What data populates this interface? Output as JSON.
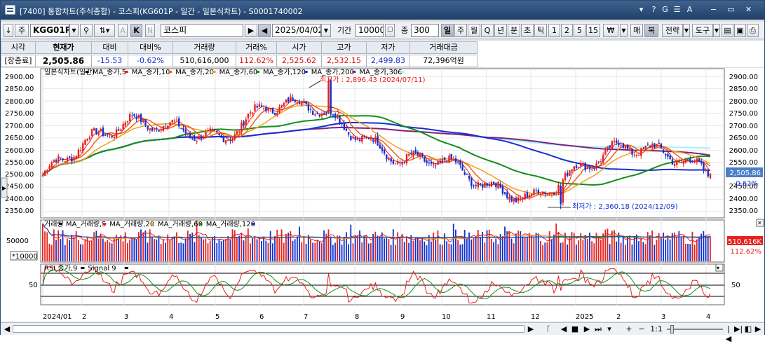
{
  "window": {
    "title": "[7400]   통합차트(주식종합) - 코스피(KG601P - 일간 - 일본식차트) - S0001740002",
    "title_buttons": [
      "▾",
      "?",
      "G",
      "☰",
      "A",
      "−",
      "▭",
      "✕"
    ]
  },
  "toolbar": {
    "down_arrow": "↓",
    "type_select": "주",
    "code": "KGG01P",
    "time_buttons": [
      "A",
      "K",
      "N"
    ],
    "name": "코스피",
    "date": "2025/04/02",
    "period_label": "기간",
    "period_value": "10000",
    "count_label": "종",
    "count_value": "300",
    "interval_buttons": [
      "일",
      "주",
      "월",
      "Q",
      "년",
      "분",
      "초",
      "틱",
      "1",
      "2",
      "5",
      "15"
    ],
    "currency_btn": "₩",
    "right_buttons": [
      "매",
      "복",
      "전략",
      "도구"
    ]
  },
  "quote": {
    "headers": [
      "시각",
      "현재가",
      "대비",
      "대비%",
      "거래량",
      "거래%",
      "시가",
      "고가",
      "저가",
      "거래대금"
    ],
    "values": [
      "[장종료]",
      "2,505.86",
      "-15.53",
      "-0.62%",
      "510,616,000",
      "112.62%",
      "2,525.62",
      "2,532.15",
      "2,499.83",
      "72,396억원"
    ]
  },
  "legends": {
    "price": [
      {
        "text": "일본식차트(일간)",
        "color": "#000000"
      },
      {
        "text": "MA_종가,5",
        "color": "#e8201c"
      },
      {
        "text": "MA_종가,10",
        "color": "#f06018"
      },
      {
        "text": "MA_종가,20",
        "color": "#f0a020"
      },
      {
        "text": "MA_종가,60",
        "color": "#109018"
      },
      {
        "text": "MA_종가,120",
        "color": "#1830d0"
      },
      {
        "text": "MA_종가,200",
        "color": "#802080"
      },
      {
        "text": "MA_종가,306",
        "color": "#a8f0f8"
      }
    ],
    "volume": [
      {
        "text": "거래량",
        "color": "#000000"
      },
      {
        "text": "MA_거래량,5",
        "color": "#e8201c"
      },
      {
        "text": "MA_거래량,20",
        "color": "#f0a020"
      },
      {
        "text": "MA_거래량,60",
        "color": "#109018"
      },
      {
        "text": "MA_거래량,120",
        "color": "#1830d0"
      }
    ],
    "rsi": [
      {
        "text": "RSI 종가,9",
        "color": "#000000"
      },
      {
        "text": "Signal 9",
        "color": "#000000"
      }
    ]
  },
  "annotations": {
    "high": "최고가 : 2,896.43 (2024/07/11)",
    "low": "최저가 : 2,360.18 (2024/12/09)"
  },
  "price_axis": [
    "2900.00",
    "2850.00",
    "2800.00",
    "2750.00",
    "2700.00",
    "2650.00",
    "2600.00",
    "2550.00",
    "2500.00",
    "2450.00",
    "2400.00",
    "2350.00"
  ],
  "current_price_label": "2,505.86",
  "current_change_label": "-0.62%",
  "volume_axis": {
    "tick": "50000",
    "multiplier": "*10000"
  },
  "volume_current_label": "510,616K",
  "volume_ratio_label": "112.62%",
  "rsi_axis": "50",
  "x_axis": [
    "2024/01",
    "2",
    "3",
    "4",
    "5",
    "6",
    "7",
    "8",
    "9",
    "10",
    "11",
    "12",
    "2025",
    "2",
    "3",
    "4"
  ],
  "scroll": {
    "ratio": "1:1",
    "controls": [
      "◀",
      "▶",
      "ᚴ",
      "◀",
      "■",
      "▶",
      "⏭",
      "▾",
      "+",
      "−",
      "|◀",
      "▶|",
      "◧",
      "⊞",
      "▦",
      "▶"
    ]
  },
  "chart_data": {
    "type": "candlestick",
    "x_range": [
      "2024-01-02",
      "2025-04-02"
    ],
    "ylim": [
      2330,
      2910
    ],
    "approx_close_by_month": [
      {
        "x": "2024-01",
        "y": 2500
      },
      {
        "x": "2024-02",
        "y": 2640
      },
      {
        "x": "2024-03",
        "y": 2720
      },
      {
        "x": "2024-04",
        "y": 2690
      },
      {
        "x": "2024-05",
        "y": 2640
      },
      {
        "x": "2024-06",
        "y": 2780
      },
      {
        "x": "2024-07",
        "y": 2790
      },
      {
        "x": "2024-08",
        "y": 2670
      },
      {
        "x": "2024-09",
        "y": 2560
      },
      {
        "x": "2024-10",
        "y": 2560
      },
      {
        "x": "2024-11",
        "y": 2450
      },
      {
        "x": "2024-12",
        "y": 2400
      },
      {
        "x": "2025-01",
        "y": 2520
      },
      {
        "x": "2025-02",
        "y": 2620
      },
      {
        "x": "2025-03",
        "y": 2590
      },
      {
        "x": "2025-04",
        "y": 2505.86
      }
    ],
    "high": {
      "date": "2024-07-11",
      "value": 2896.43
    },
    "low": {
      "date": "2024-12-09",
      "value": 2360.18
    },
    "last": {
      "value": 2505.86,
      "change": -15.53,
      "change_pct": -0.62
    }
  }
}
